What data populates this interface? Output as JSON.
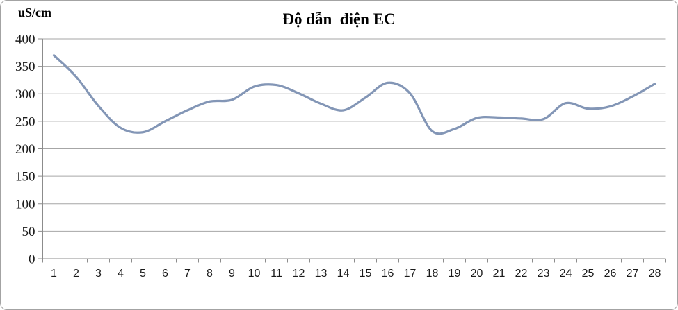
{
  "title": "Độ dẫn  điện EC",
  "unit_label": "uS/cm",
  "colors": {
    "line": "#8396B6",
    "gridline": "#A6A6A6",
    "axis": "#8C8C8C",
    "border": "#A3A3A3",
    "tick_text": "#1A1A1A"
  },
  "chart_data": {
    "type": "line",
    "title": "Độ dẫn  điện EC",
    "ylabel": "uS/cm",
    "xlabel": "",
    "categories": [
      1,
      2,
      3,
      4,
      5,
      6,
      7,
      8,
      9,
      10,
      11,
      12,
      13,
      14,
      15,
      16,
      17,
      18,
      19,
      20,
      21,
      22,
      23,
      24,
      25,
      26,
      27,
      28
    ],
    "series": [
      {
        "name": "EC",
        "values": [
          370,
          331,
          278,
          238,
          230,
          250,
          270,
          286,
          289,
          313,
          316,
          301,
          282,
          270,
          293,
          320,
          301,
          232,
          236,
          256,
          257,
          255,
          254,
          283,
          273,
          277,
          295,
          318
        ]
      }
    ],
    "ylim": [
      0,
      400
    ],
    "ytick_step": 50,
    "grid": true,
    "legend": false,
    "smooth": true
  }
}
